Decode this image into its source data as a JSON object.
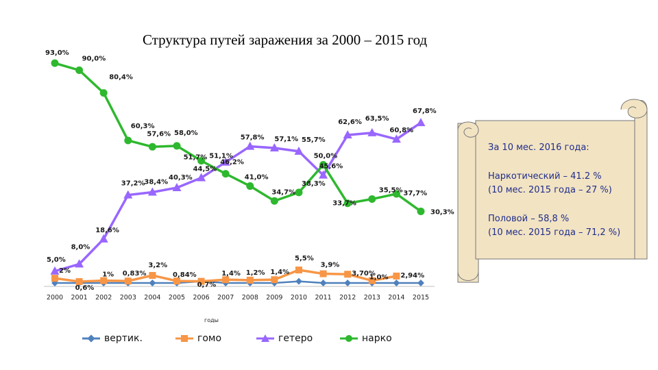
{
  "title": "Структура путей заражения за 2000 – 2015 год",
  "note": {
    "heading": "За 10 мес. 2016 года:",
    "drug_line1": "Наркотический – 41.2 %",
    "drug_line2": "(10 мес. 2015 года – 27 %)",
    "sex_line1": "Половой – 58,8 %",
    "sex_line2": "(10 мес. 2015 года – 71,2 %)"
  },
  "chart_data": {
    "type": "line",
    "title": "Структура путей заражения за 2000 – 2015 год",
    "xlabel": "годы",
    "ylabel": "",
    "x": [
      "2000",
      "2001",
      "2002",
      "2003",
      "2004",
      "2005",
      "2006",
      "2007",
      "2008",
      "2009",
      "2010",
      "2011",
      "2012",
      "2013",
      "2014",
      "2015"
    ],
    "ylim": [
      0,
      100
    ],
    "grid": false,
    "legend": "bottom",
    "series": [
      {
        "name": "вертик.",
        "color": "#4f81bd",
        "marker": "diamond",
        "values": [
          0,
          0,
          0,
          0,
          0,
          0,
          0.7,
          0,
          0,
          0,
          0.7,
          0,
          0,
          0,
          0,
          0
        ],
        "labels": []
      },
      {
        "name": "гомо",
        "color": "#f79646",
        "marker": "square",
        "values": [
          2,
          0.6,
          1,
          0.83,
          3.2,
          0.84,
          0.7,
          1.4,
          1.2,
          1.4,
          5.5,
          3.9,
          3.7,
          1.0,
          2.94,
          null
        ],
        "labels": [
          "2%",
          "0,6%",
          "1%",
          "0,83%",
          "3,2%",
          "0,84%",
          "0,7%",
          "1,4%",
          "1,2%",
          "1,4%",
          "5,5%",
          "3,9%",
          "3,70%",
          "1,0%",
          "2,94%",
          ""
        ]
      },
      {
        "name": "гетеро",
        "color": "#9966ff",
        "marker": "triangle",
        "values": [
          5.0,
          8.0,
          18.6,
          37.2,
          38.4,
          40.3,
          44.5,
          51.1,
          57.8,
          57.1,
          55.7,
          45.6,
          62.6,
          63.5,
          60.8,
          67.8
        ],
        "labels": [
          "5,0%",
          "8,0%",
          "18,6%",
          "37,2%",
          "38,4%",
          "40,3%",
          "44,5%",
          "51,1%",
          "57,8%",
          "57,1%",
          "55,7%",
          "45,6%",
          "62,6%",
          "63,5%",
          "60,8%",
          "67,8%"
        ]
      },
      {
        "name": "нарко",
        "color": "#2eb82e",
        "marker": "circle",
        "values": [
          93.0,
          90.0,
          80.4,
          60.3,
          57.6,
          58.0,
          51.7,
          46.2,
          41.0,
          34.7,
          38.3,
          50.0,
          33.7,
          35.5,
          37.7,
          30.3
        ],
        "labels": [
          "93,0%",
          "90,0%",
          "80,4%",
          "60,3%",
          "57,6%",
          "58,0%",
          "51,7%",
          "46,2%",
          "41,0%",
          "34,7%",
          "38,3%",
          "50,0%",
          "33,7%",
          "35,5%",
          "37,7%",
          "30,3%"
        ]
      }
    ]
  }
}
